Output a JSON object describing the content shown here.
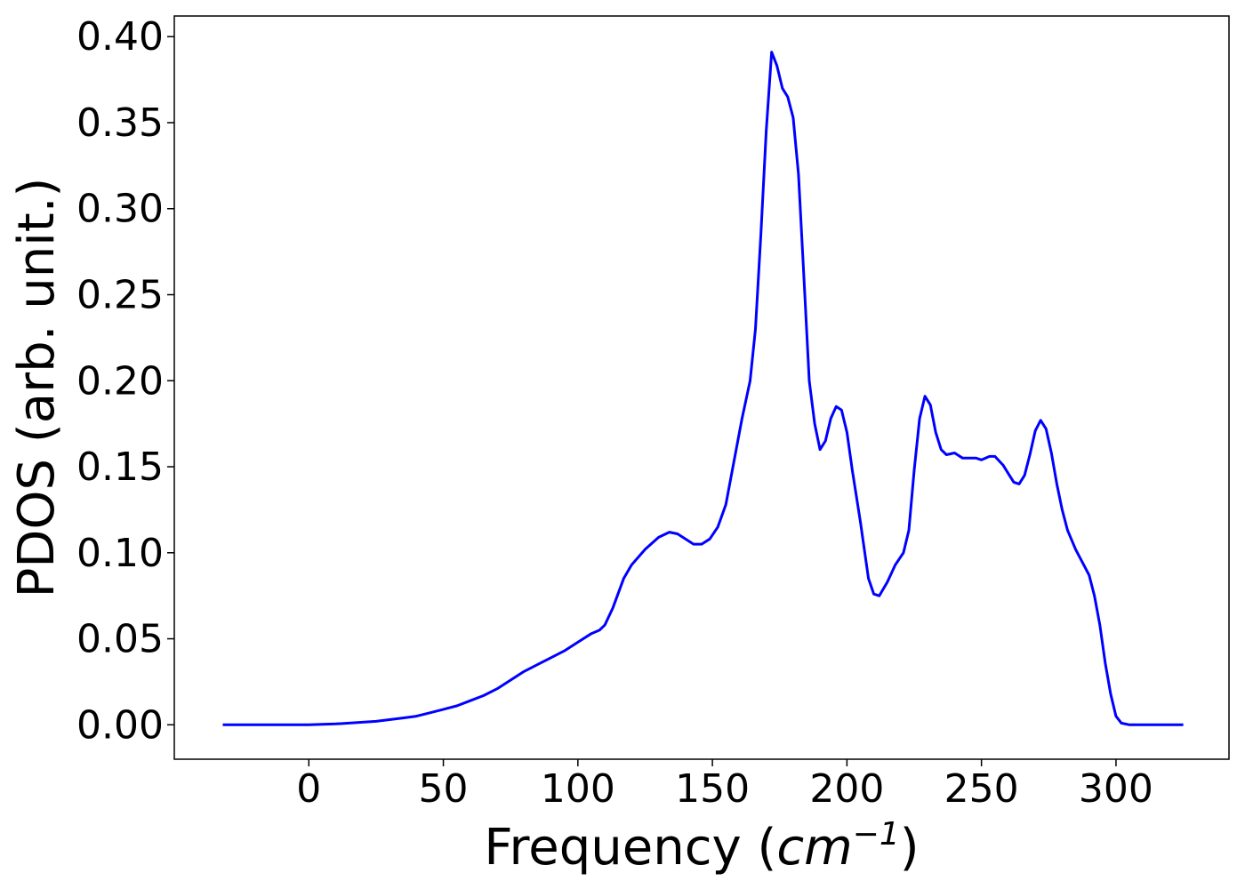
{
  "chart_data": {
    "type": "line",
    "title": "",
    "xlabel_prefix": "Frequency (",
    "xlabel_var": "cm",
    "xlabel_sup": "−1",
    "xlabel_suffix": ")",
    "ylabel": "PDOS (arb. unit.)",
    "xlim": [
      -50,
      342
    ],
    "ylim": [
      -0.02,
      0.412
    ],
    "xticks": [
      0,
      50,
      100,
      150,
      200,
      250,
      300
    ],
    "xtick_labels": [
      "0",
      "50",
      "100",
      "150",
      "200",
      "250",
      "300"
    ],
    "yticks": [
      0.0,
      0.05,
      0.1,
      0.15,
      0.2,
      0.25,
      0.3,
      0.35,
      0.4
    ],
    "ytick_labels": [
      "0.00",
      "0.05",
      "0.10",
      "0.15",
      "0.20",
      "0.25",
      "0.30",
      "0.35",
      "0.40"
    ],
    "grid": false,
    "legend": "none",
    "line_color": "#0000ff",
    "series": [
      {
        "x": [
          -32,
          -10,
          0,
          10,
          20,
          25,
          30,
          35,
          40,
          45,
          50,
          55,
          60,
          65,
          70,
          75,
          80,
          85,
          90,
          95,
          100,
          105,
          108,
          110,
          113,
          117,
          120,
          125,
          130,
          134,
          137,
          140,
          143,
          146,
          149,
          152,
          155,
          158,
          161,
          164,
          166,
          168,
          170,
          172,
          174,
          176,
          178,
          180,
          182,
          184,
          186,
          188,
          190,
          192,
          194,
          196,
          198,
          200,
          202,
          205,
          208,
          210,
          212,
          215,
          218,
          221,
          223,
          225,
          227,
          229,
          231,
          233,
          235,
          237,
          240,
          243,
          245,
          248,
          250,
          253,
          255,
          258,
          260,
          262,
          264,
          266,
          268,
          270,
          272,
          274,
          276,
          278,
          280,
          282,
          285,
          288,
          290,
          292,
          294,
          296,
          298,
          300,
          302,
          305,
          310,
          325
        ],
        "y": [
          0.0,
          0.0,
          0.0,
          0.0005,
          0.0015,
          0.002,
          0.003,
          0.004,
          0.005,
          0.007,
          0.009,
          0.011,
          0.014,
          0.017,
          0.021,
          0.026,
          0.031,
          0.035,
          0.039,
          0.043,
          0.048,
          0.053,
          0.055,
          0.058,
          0.068,
          0.085,
          0.093,
          0.102,
          0.109,
          0.112,
          0.111,
          0.108,
          0.105,
          0.105,
          0.108,
          0.115,
          0.128,
          0.153,
          0.178,
          0.2,
          0.23,
          0.285,
          0.345,
          0.391,
          0.383,
          0.37,
          0.365,
          0.353,
          0.32,
          0.26,
          0.2,
          0.175,
          0.16,
          0.165,
          0.178,
          0.185,
          0.183,
          0.17,
          0.148,
          0.118,
          0.085,
          0.076,
          0.075,
          0.083,
          0.093,
          0.1,
          0.113,
          0.148,
          0.178,
          0.191,
          0.186,
          0.17,
          0.16,
          0.157,
          0.158,
          0.155,
          0.155,
          0.155,
          0.154,
          0.156,
          0.156,
          0.151,
          0.146,
          0.141,
          0.14,
          0.145,
          0.157,
          0.171,
          0.177,
          0.172,
          0.158,
          0.14,
          0.125,
          0.113,
          0.102,
          0.093,
          0.087,
          0.075,
          0.058,
          0.036,
          0.018,
          0.005,
          0.001,
          0.0,
          0.0,
          0.0
        ]
      }
    ]
  }
}
